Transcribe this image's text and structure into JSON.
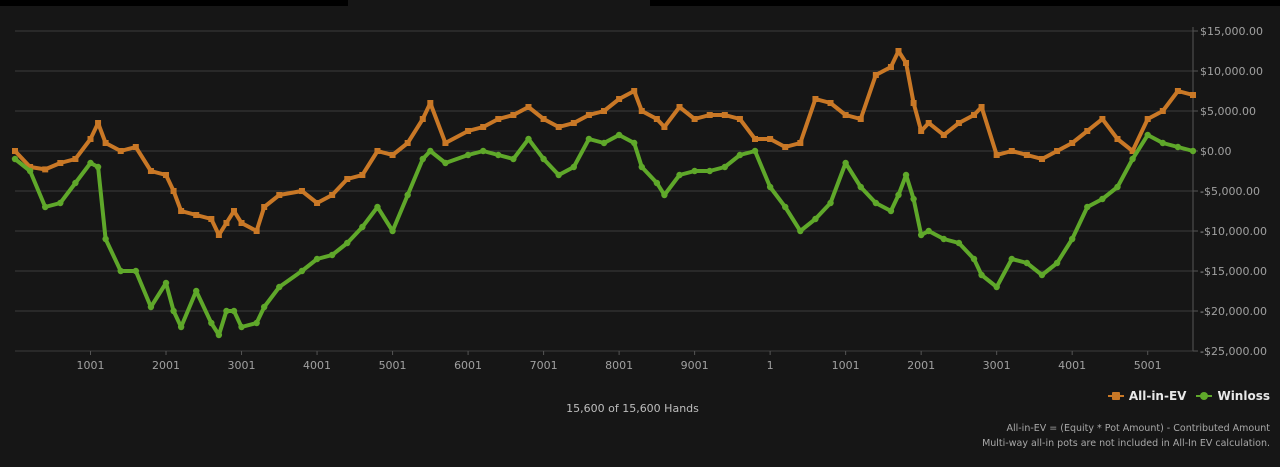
{
  "colors": {
    "all_in_ev": "#c97826",
    "winloss": "#5fa82a",
    "grid": "#3c3c3c",
    "axis_text": "#a0a0a0"
  },
  "legend": {
    "ev_label": "All-in-EV",
    "winloss_label": "Winloss",
    "placement": "bottom-right"
  },
  "hands_label": "15,600 of 15,600 Hands",
  "footnote": {
    "line1": "All-in-EV = (Equity * Pot Amount) - Contributed Amount",
    "line2": "Multi-way all-in pots are not included in All-In EV calculation."
  },
  "chart_data": {
    "type": "line",
    "title": "",
    "xlabel": "",
    "ylabel": "",
    "grid": true,
    "xlim": [
      0,
      15600
    ],
    "ylim": [
      -25000,
      15000
    ],
    "x_ticks": [
      {
        "x": 1000,
        "label": "1001"
      },
      {
        "x": 2000,
        "label": "2001"
      },
      {
        "x": 3000,
        "label": "3001"
      },
      {
        "x": 4000,
        "label": "4001"
      },
      {
        "x": 5000,
        "label": "5001"
      },
      {
        "x": 6000,
        "label": "6001"
      },
      {
        "x": 7000,
        "label": "7001"
      },
      {
        "x": 8000,
        "label": "8001"
      },
      {
        "x": 9000,
        "label": "9001"
      },
      {
        "x": 10000,
        "label": "1"
      },
      {
        "x": 11000,
        "label": "1001"
      },
      {
        "x": 12000,
        "label": "2001"
      },
      {
        "x": 13000,
        "label": "3001"
      },
      {
        "x": 14000,
        "label": "4001"
      },
      {
        "x": 15000,
        "label": "5001"
      }
    ],
    "y_ticks": [
      {
        "y": 15000,
        "label": "$15,000.00"
      },
      {
        "y": 10000,
        "label": "$10,000.00"
      },
      {
        "y": 5000,
        "label": "$5,000.00"
      },
      {
        "y": 0,
        "label": "$0.00"
      },
      {
        "y": -5000,
        "label": "-$5,000.00"
      },
      {
        "y": -10000,
        "label": "-$10,000.00"
      },
      {
        "y": -15000,
        "label": "-$15,000.00"
      },
      {
        "y": -20000,
        "label": "-$20,000.00"
      },
      {
        "y": -25000,
        "label": "-$25,000.00"
      }
    ],
    "x": [
      0,
      200,
      400,
      600,
      800,
      1000,
      1100,
      1200,
      1400,
      1600,
      1800,
      2000,
      2100,
      2200,
      2400,
      2600,
      2700,
      2800,
      2900,
      3000,
      3200,
      3300,
      3500,
      3800,
      4000,
      4200,
      4400,
      4600,
      4800,
      5000,
      5200,
      5400,
      5500,
      5700,
      6000,
      6200,
      6400,
      6600,
      6800,
      7000,
      7200,
      7400,
      7600,
      7800,
      8000,
      8200,
      8300,
      8500,
      8600,
      8800,
      9000,
      9200,
      9400,
      9600,
      9800,
      10000,
      10200,
      10400,
      10600,
      10800,
      11000,
      11200,
      11400,
      11600,
      11700,
      11800,
      11900,
      12000,
      12100,
      12300,
      12500,
      12700,
      12800,
      13000,
      13200,
      13400,
      13600,
      13800,
      14000,
      14200,
      14400,
      14600,
      14800,
      15000,
      15200,
      15400,
      15600
    ],
    "series": [
      {
        "name": "All-in-EV",
        "values": [
          0,
          -2000,
          -2300,
          -1500,
          -1000,
          1500,
          3500,
          1000,
          0,
          500,
          -2500,
          -3000,
          -5000,
          -7500,
          -8000,
          -8500,
          -10500,
          -9000,
          -7500,
          -9000,
          -10000,
          -7000,
          -5500,
          -5000,
          -6500,
          -5500,
          -3500,
          -3000,
          0,
          -500,
          1000,
          4000,
          6000,
          1000,
          2500,
          3000,
          4000,
          4500,
          5500,
          4000,
          3000,
          3500,
          4500,
          5000,
          6500,
          7500,
          5000,
          4000,
          3000,
          5500,
          4000,
          4500,
          4500,
          4000,
          1500,
          1500,
          500,
          1000,
          6500,
          6000,
          4500,
          4000,
          9500,
          10500,
          12500,
          11000,
          6000,
          2500,
          3500,
          2000,
          3500,
          4500,
          5500,
          -500,
          0,
          -500,
          -1000,
          0,
          1000,
          2500,
          4000,
          1500,
          0,
          4000,
          5000,
          7500,
          7000
        ]
      },
      {
        "name": "Winloss",
        "values": [
          -1000,
          -2500,
          -7000,
          -6500,
          -4000,
          -1500,
          -2000,
          -11000,
          -15000,
          -15000,
          -19500,
          -16500,
          -20000,
          -22000,
          -17500,
          -21500,
          -23000,
          -20000,
          -20000,
          -22000,
          -21500,
          -19500,
          -17000,
          -15000,
          -13500,
          -13000,
          -11500,
          -9500,
          -7000,
          -10000,
          -5500,
          -1000,
          0,
          -1500,
          -500,
          0,
          -500,
          -1000,
          1500,
          -1000,
          -3000,
          -2000,
          1500,
          1000,
          2000,
          1000,
          -2000,
          -4000,
          -5500,
          -3000,
          -2500,
          -2500,
          -2000,
          -500,
          0,
          -4500,
          -7000,
          -10000,
          -8500,
          -6500,
          -1500,
          -4500,
          -6500,
          -7500,
          -5500,
          -3000,
          -6000,
          -10500,
          -10000,
          -11000,
          -11500,
          -13500,
          -15500,
          -17000,
          -13500,
          -14000,
          -15500,
          -14000,
          -11000,
          -7000,
          -6000,
          -4500,
          -1000,
          2000,
          1000,
          500,
          0
        ]
      }
    ]
  }
}
